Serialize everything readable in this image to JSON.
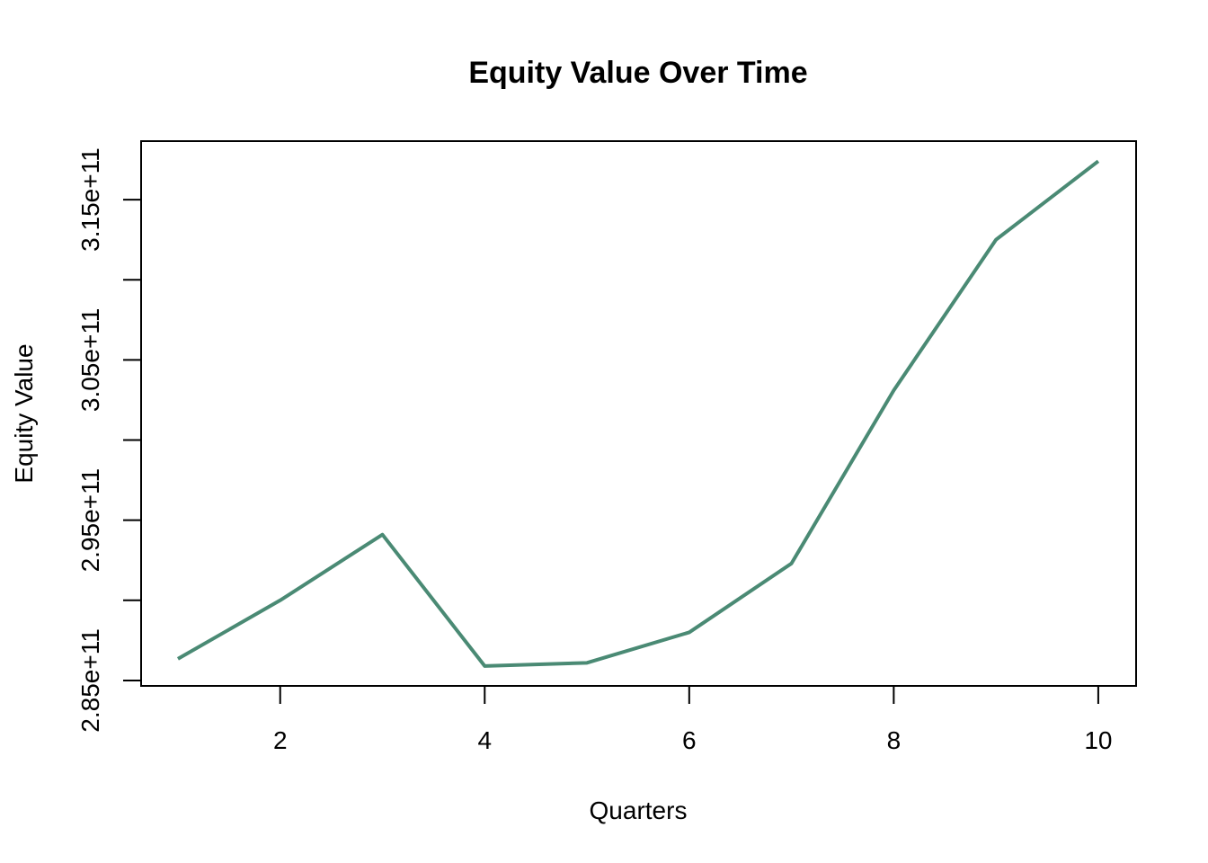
{
  "chart_data": {
    "type": "line",
    "title": "Equity Value Over Time",
    "xlabel": "Quarters",
    "ylabel": "Equity Value",
    "x": [
      1,
      2,
      3,
      4,
      5,
      6,
      7,
      8,
      9,
      10
    ],
    "series": [
      {
        "values": [
          286350000000.0,
          290000000000.0,
          294100000000.0,
          285900000000.0,
          286100000000.0,
          288000000000.0,
          292300000000.0,
          303100000000.0,
          312500000000.0,
          317400000000.0
        ],
        "color": "#4a8a74"
      }
    ],
    "xlim": [
      0.64,
      10.37
    ],
    "ylim": [
      284660000000.0,
      318650000000.0
    ],
    "xticks": [
      2,
      4,
      6,
      8,
      10
    ],
    "xtick_labels": [
      "2",
      "4",
      "6",
      "8",
      "10"
    ],
    "yticks": [
      285000000000.0,
      290000000000.0,
      295000000000.0,
      300000000000.0,
      305000000000.0,
      310000000000.0,
      315000000000.0
    ],
    "ytick_labels": [
      "2.85e+11",
      "",
      "2.95e+11",
      "",
      "3.05e+11",
      "",
      "3.15e+11"
    ],
    "grid": false,
    "legend": "none"
  }
}
